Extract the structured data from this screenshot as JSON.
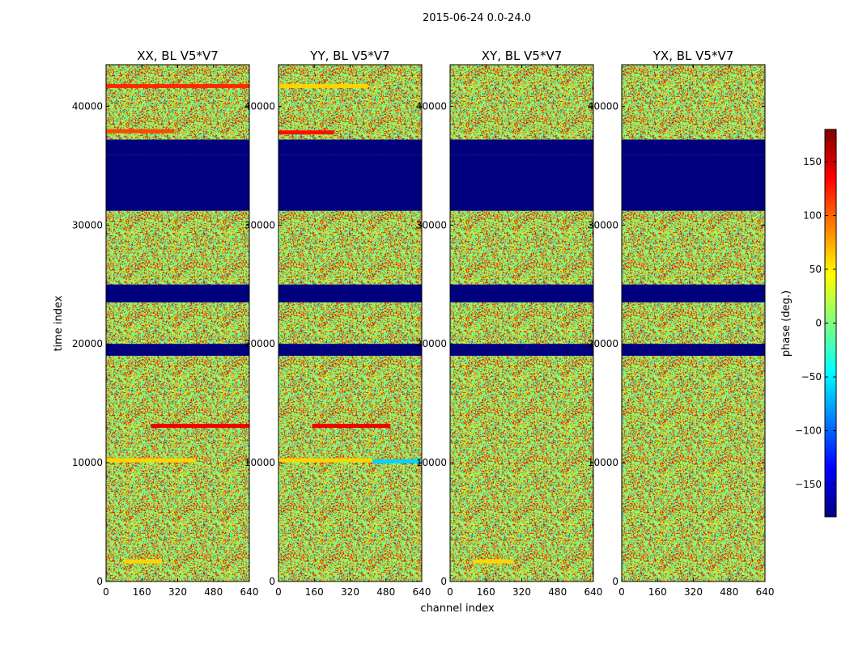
{
  "figure": {
    "suptitle": "2015-06-24 0.0-24.0"
  },
  "colorbar": {
    "label": "phase (deg.)",
    "range": [
      -180,
      180
    ],
    "ticks": [
      -150,
      -100,
      -50,
      0,
      50,
      100,
      150
    ],
    "tick_labels": [
      "−150",
      "−100",
      "−50",
      "0",
      "50",
      "100",
      "150"
    ],
    "colormap": "jet",
    "colors": [
      "#00007f",
      "#0000ff",
      "#007fff",
      "#00ffff",
      "#7fff7f",
      "#ffff00",
      "#ff7f00",
      "#ff0000",
      "#7f0000"
    ]
  },
  "chart_data": [
    {
      "type": "heatmap",
      "title": "XX, BL V5*V7",
      "xlabel": "",
      "ylabel": "time index",
      "xlim": [
        0,
        640
      ],
      "ylim": [
        0,
        43500
      ],
      "xticks": [
        0,
        160,
        320,
        480,
        640
      ],
      "yticks": [
        0,
        10000,
        20000,
        30000,
        40000
      ],
      "value_range": [
        -180,
        180
      ],
      "masked_time_ranges": [
        [
          35900,
          37200
        ],
        [
          31200,
          35900
        ],
        [
          23500,
          25000
        ],
        [
          19000,
          20000
        ]
      ],
      "coherent_bands": [
        {
          "time": 41700,
          "channels": [
            0,
            640
          ],
          "phase": 120
        },
        {
          "time": 37900,
          "channels": [
            0,
            300
          ],
          "phase": 110
        },
        {
          "time": 13100,
          "channels": [
            200,
            640
          ],
          "phase": 140
        },
        {
          "time": 10200,
          "channels": [
            0,
            400
          ],
          "phase": 60
        },
        {
          "time": 1700,
          "channels": [
            80,
            250
          ],
          "phase": 60
        }
      ]
    },
    {
      "type": "heatmap",
      "title": "YY, BL V5*V7",
      "xlabel": "channel index",
      "ylabel": "",
      "xlim": [
        0,
        640
      ],
      "ylim": [
        0,
        43500
      ],
      "xticks": [
        0,
        160,
        320,
        480,
        640
      ],
      "yticks": [
        0,
        10000,
        20000,
        30000,
        40000
      ],
      "value_range": [
        -180,
        180
      ],
      "masked_time_ranges": [
        [
          35900,
          37200
        ],
        [
          31200,
          35900
        ],
        [
          23500,
          25000
        ],
        [
          19000,
          20000
        ]
      ],
      "coherent_bands": [
        {
          "time": 41700,
          "channels": [
            0,
            400
          ],
          "phase": 60
        },
        {
          "time": 37800,
          "channels": [
            0,
            250
          ],
          "phase": 130
        },
        {
          "time": 13100,
          "channels": [
            150,
            500
          ],
          "phase": 140
        },
        {
          "time": 10200,
          "channels": [
            0,
            420
          ],
          "phase": 60
        },
        {
          "time": 10100,
          "channels": [
            420,
            640
          ],
          "phase": -60
        }
      ]
    },
    {
      "type": "heatmap",
      "title": "XY, BL V5*V7",
      "xlabel": "",
      "ylabel": "",
      "xlim": [
        0,
        640
      ],
      "ylim": [
        0,
        43500
      ],
      "xticks": [
        0,
        160,
        320,
        480,
        640
      ],
      "yticks": [
        0,
        10000,
        20000,
        30000,
        40000
      ],
      "value_range": [
        -180,
        180
      ],
      "masked_time_ranges": [
        [
          35900,
          37200
        ],
        [
          31200,
          35900
        ],
        [
          23500,
          25000
        ],
        [
          19000,
          20000
        ]
      ],
      "coherent_bands": [
        {
          "time": 1700,
          "channels": [
            100,
            280
          ],
          "phase": 60
        }
      ]
    },
    {
      "type": "heatmap",
      "title": "YX, BL V5*V7",
      "xlabel": "",
      "ylabel": "",
      "xlim": [
        0,
        640
      ],
      "ylim": [
        0,
        43500
      ],
      "xticks": [
        0,
        160,
        320,
        480,
        640
      ],
      "yticks": [
        0,
        10000,
        20000,
        30000,
        40000
      ],
      "value_range": [
        -180,
        180
      ],
      "masked_time_ranges": [
        [
          35900,
          37200
        ],
        [
          31200,
          35900
        ],
        [
          23500,
          25000
        ],
        [
          19000,
          20000
        ]
      ],
      "coherent_bands": []
    }
  ]
}
